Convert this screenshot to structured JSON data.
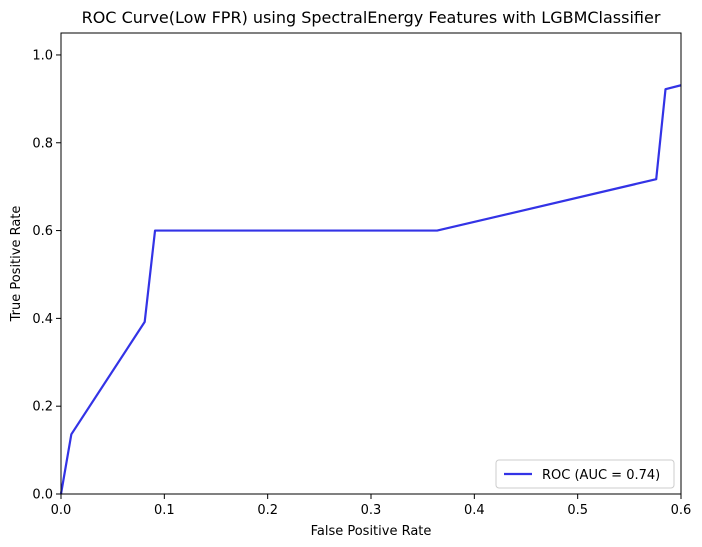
{
  "chart_data": {
    "type": "line",
    "title": "ROC Curve(Low FPR) using SpectralEnergy Features with LGBMClassifier",
    "xlabel": "False Positive Rate",
    "ylabel": "True Positive Rate",
    "xlim": [
      0,
      0.6
    ],
    "ylim": [
      0,
      1.05
    ],
    "x_ticks": [
      "0.0",
      "0.1",
      "0.2",
      "0.3",
      "0.4",
      "0.5",
      "0.6"
    ],
    "y_ticks": [
      "0.0",
      "0.2",
      "0.4",
      "0.6",
      "0.8",
      "1.0"
    ],
    "grid": false,
    "legend_position": "lower-right",
    "series": [
      {
        "name": "ROC (AUC = 0.74)",
        "color": "#3333e6",
        "x": [
          0.0,
          0.01,
          0.081,
          0.091,
          0.364,
          0.576,
          0.585,
          0.6
        ],
        "y": [
          0.0,
          0.136,
          0.392,
          0.6,
          0.6,
          0.717,
          0.922,
          0.931
        ]
      }
    ]
  }
}
